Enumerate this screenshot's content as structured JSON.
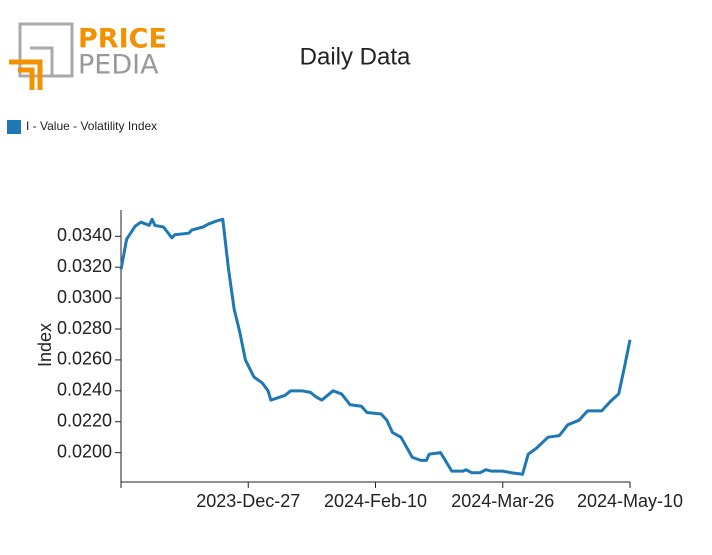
{
  "logo": {
    "line1": "PRICE",
    "line2": "PEDIA"
  },
  "chart_data": {
    "type": "line",
    "title": "Daily Data",
    "y_label": "Index",
    "x": [
      "2023-11-12",
      "2023-11-13",
      "2023-11-14",
      "2023-11-17",
      "2023-11-19",
      "2023-11-22",
      "2023-11-23",
      "2023-11-24",
      "2023-11-27",
      "2023-11-30",
      "2023-12-01",
      "2023-12-06",
      "2023-12-07",
      "2023-12-11",
      "2023-12-13",
      "2023-12-16",
      "2023-12-18",
      "2023-12-20",
      "2023-12-22",
      "2023-12-24",
      "2023-12-26",
      "2023-12-29",
      "2024-01-01",
      "2024-01-03",
      "2024-01-04",
      "2024-01-09",
      "2024-01-11",
      "2024-01-15",
      "2024-01-18",
      "2024-01-20",
      "2024-01-22",
      "2024-01-26",
      "2024-01-29",
      "2024-02-01",
      "2024-02-05",
      "2024-02-07",
      "2024-02-12",
      "2024-02-14",
      "2024-02-16",
      "2024-02-19",
      "2024-02-23",
      "2024-02-26",
      "2024-02-28",
      "2024-02-29",
      "2024-03-04",
      "2024-03-08",
      "2024-03-12",
      "2024-03-13",
      "2024-03-15",
      "2024-03-18",
      "2024-03-20",
      "2024-03-22",
      "2024-03-26",
      "2024-03-29",
      "2024-04-02",
      "2024-04-04",
      "2024-04-07",
      "2024-04-11",
      "2024-04-15",
      "2024-04-18",
      "2024-04-22",
      "2024-04-25",
      "2024-04-29",
      "2024-04-30",
      "2024-05-03",
      "2024-05-06",
      "2024-05-08",
      "2024-05-10"
    ],
    "series": [
      {
        "name": "I - Value - Volatility Index",
        "color": "#1f77b4",
        "values": [
          0.03186,
          0.03283,
          0.03381,
          0.03465,
          0.03491,
          0.03471,
          0.0351,
          0.0347,
          0.0346,
          0.0339,
          0.0341,
          0.0342,
          0.0344,
          0.0346,
          0.0348,
          0.035,
          0.0351,
          0.0319,
          0.0293,
          0.0278,
          0.026,
          0.0249,
          0.0245,
          0.024,
          0.0234,
          0.0237,
          0.024,
          0.024,
          0.0239,
          0.0236,
          0.0234,
          0.024,
          0.0238,
          0.0231,
          0.023,
          0.0226,
          0.0225,
          0.0221,
          0.0213,
          0.021,
          0.0197,
          0.0195,
          0.0195,
          0.0199,
          0.02,
          0.0188,
          0.0188,
          0.0189,
          0.0187,
          0.0187,
          0.0189,
          0.0188,
          0.0188,
          0.0187,
          0.0186,
          0.0199,
          0.0203,
          0.021,
          0.0211,
          0.0218,
          0.0221,
          0.0227,
          0.0227,
          0.0227,
          0.0233,
          0.0238,
          0.0255,
          0.0273
        ]
      }
    ],
    "xlim": [
      "2023-11-12",
      "2024-05-10"
    ],
    "xticks": [
      {
        "value": "2023-12-27",
        "label": "2023-Dec-27"
      },
      {
        "value": "2024-02-10",
        "label": "2024-Feb-10"
      },
      {
        "value": "2024-03-26",
        "label": "2024-Mar-26"
      },
      {
        "value": "2024-05-10",
        "label": "2024-May-10"
      }
    ],
    "ylim": [
      0.0181,
      0.0357
    ],
    "yticks": [
      {
        "value": 0.02,
        "label": "0.0200"
      },
      {
        "value": 0.022,
        "label": "0.0220"
      },
      {
        "value": 0.024,
        "label": "0.0240"
      },
      {
        "value": 0.026,
        "label": "0.0260"
      },
      {
        "value": 0.028,
        "label": "0.0280"
      },
      {
        "value": 0.03,
        "label": "0.0300"
      },
      {
        "value": 0.032,
        "label": "0.0320"
      },
      {
        "value": 0.034,
        "label": "0.0340"
      }
    ],
    "legend": "top-left"
  }
}
